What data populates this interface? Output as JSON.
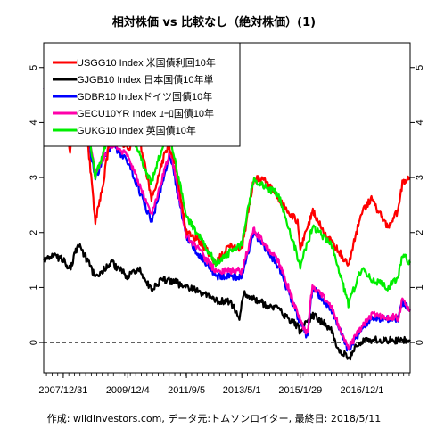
{
  "chart_data": {
    "type": "line",
    "title": "相対株価 vs 比較なし（絶対株価）(1)",
    "caption": "作成: wildinvestors.com, データ元:トムソンロイター, 最終日: 2018/5/11",
    "xlabel": "",
    "ylabel": "",
    "x_tick_labels": [
      "2007/12/31",
      "2009/12/4",
      "2011/9/5",
      "2013/5/1",
      "2015/1/29",
      "2016/12/1"
    ],
    "x_tick_dates": [
      "2007-12-31",
      "2009-12-04",
      "2011-09-05",
      "2013-05-01",
      "2015-01-29",
      "2016-12-01"
    ],
    "x_range": [
      "2007-06-01",
      "2018-05-11"
    ],
    "y_ticks": [
      0,
      1,
      2,
      3,
      4,
      5
    ],
    "ylim": [
      -0.55,
      5.45
    ],
    "y_tick_labels_left": [
      "0",
      "1",
      "2",
      "3",
      "4",
      "5"
    ],
    "y_tick_labels_right": [
      "0",
      "1",
      "2",
      "3",
      "4",
      "5"
    ],
    "zero_line": {
      "value": 0,
      "style": "dashed"
    },
    "legend_position": "top-left",
    "series": [
      {
        "name": "USGG10 Index 米国債利回10年",
        "color": "#ff0000",
        "points": [
          [
            "2007-06-01",
            5.0
          ],
          [
            "2007-09-01",
            4.5
          ],
          [
            "2007-12-31",
            4.0
          ],
          [
            "2008-03-15",
            3.5
          ],
          [
            "2008-06-15",
            4.2
          ],
          [
            "2008-09-15",
            3.8
          ],
          [
            "2008-12-15",
            2.2
          ],
          [
            "2009-03-01",
            2.8
          ],
          [
            "2009-06-10",
            3.9
          ],
          [
            "2009-12-04",
            3.5
          ],
          [
            "2010-04-01",
            3.8
          ],
          [
            "2010-08-20",
            2.6
          ],
          [
            "2010-12-01",
            3.2
          ],
          [
            "2011-02-15",
            3.6
          ],
          [
            "2011-05-01",
            3.3
          ],
          [
            "2011-09-05",
            2.0
          ],
          [
            "2012-01-01",
            1.9
          ],
          [
            "2012-07-20",
            1.45
          ],
          [
            "2012-12-15",
            1.75
          ],
          [
            "2013-05-01",
            1.7
          ],
          [
            "2013-09-05",
            2.95
          ],
          [
            "2013-12-31",
            3.0
          ],
          [
            "2014-06-01",
            2.6
          ],
          [
            "2014-12-31",
            2.2
          ],
          [
            "2015-01-29",
            1.7
          ],
          [
            "2015-06-15",
            2.4
          ],
          [
            "2015-10-15",
            2.0
          ],
          [
            "2016-02-15",
            1.75
          ],
          [
            "2016-07-06",
            1.4
          ],
          [
            "2016-12-01",
            2.4
          ],
          [
            "2017-03-15",
            2.6
          ],
          [
            "2017-09-08",
            2.1
          ],
          [
            "2017-12-31",
            2.4
          ],
          [
            "2018-02-15",
            2.9
          ],
          [
            "2018-05-11",
            3.0
          ]
        ]
      },
      {
        "name": "GJGB10 Index 日本国債10年単",
        "color": "#000000",
        "points": [
          [
            "2007-06-01",
            1.5
          ],
          [
            "2007-09-01",
            1.6
          ],
          [
            "2007-12-31",
            1.5
          ],
          [
            "2008-03-15",
            1.35
          ],
          [
            "2008-06-15",
            1.8
          ],
          [
            "2008-09-15",
            1.5
          ],
          [
            "2008-12-15",
            1.2
          ],
          [
            "2009-06-10",
            1.45
          ],
          [
            "2009-12-04",
            1.2
          ],
          [
            "2010-04-01",
            1.35
          ],
          [
            "2010-08-20",
            0.95
          ],
          [
            "2010-12-01",
            1.15
          ],
          [
            "2011-05-01",
            1.1
          ],
          [
            "2011-09-05",
            1.0
          ],
          [
            "2012-01-01",
            0.95
          ],
          [
            "2012-07-20",
            0.75
          ],
          [
            "2012-12-15",
            0.75
          ],
          [
            "2013-04-05",
            0.45
          ],
          [
            "2013-05-23",
            0.9
          ],
          [
            "2013-12-31",
            0.7
          ],
          [
            "2014-06-01",
            0.6
          ],
          [
            "2014-12-31",
            0.3
          ],
          [
            "2015-01-20",
            0.2
          ],
          [
            "2015-06-15",
            0.5
          ],
          [
            "2015-12-31",
            0.25
          ],
          [
            "2016-03-15",
            -0.15
          ],
          [
            "2016-07-27",
            -0.28
          ],
          [
            "2016-10-01",
            -0.05
          ],
          [
            "2016-12-01",
            0.02
          ],
          [
            "2017-06-01",
            0.05
          ],
          [
            "2017-12-31",
            0.04
          ],
          [
            "2018-05-11",
            0.05
          ]
        ]
      },
      {
        "name": "GDBR10 Indexドイツ国債10年",
        "color": "#0000ff",
        "points": [
          [
            "2007-06-01",
            4.6
          ],
          [
            "2007-12-31",
            4.3
          ],
          [
            "2008-06-15",
            4.6
          ],
          [
            "2008-12-15",
            3.0
          ],
          [
            "2009-06-10",
            3.6
          ],
          [
            "2009-12-04",
            3.3
          ],
          [
            "2010-08-20",
            2.2
          ],
          [
            "2011-03-15",
            3.4
          ],
          [
            "2011-09-05",
            1.9
          ],
          [
            "2012-07-20",
            1.2
          ],
          [
            "2013-05-01",
            1.2
          ],
          [
            "2013-09-05",
            2.0
          ],
          [
            "2014-06-01",
            1.4
          ],
          [
            "2015-01-29",
            0.35
          ],
          [
            "2015-04-17",
            0.1
          ],
          [
            "2015-06-10",
            1.0
          ],
          [
            "2015-12-31",
            0.6
          ],
          [
            "2016-07-06",
            -0.15
          ],
          [
            "2016-12-01",
            0.25
          ],
          [
            "2017-03-15",
            0.45
          ],
          [
            "2017-12-31",
            0.42
          ],
          [
            "2018-02-15",
            0.75
          ],
          [
            "2018-05-11",
            0.6
          ]
        ]
      },
      {
        "name": "GECU10YR Index ﾕｰﾛ国債10年",
        "color": "#ff00aa",
        "points": [
          [
            "2007-06-01",
            4.6
          ],
          [
            "2007-12-31",
            4.3
          ],
          [
            "2008-06-15",
            4.7
          ],
          [
            "2008-12-15",
            3.1
          ],
          [
            "2009-06-10",
            3.6
          ],
          [
            "2009-12-04",
            3.4
          ],
          [
            "2010-08-20",
            2.3
          ],
          [
            "2011-03-15",
            3.5
          ],
          [
            "2011-09-05",
            1.95
          ],
          [
            "2012-07-20",
            1.3
          ],
          [
            "2013-05-01",
            1.3
          ],
          [
            "2013-09-05",
            2.05
          ],
          [
            "2014-06-01",
            1.5
          ],
          [
            "2015-01-29",
            0.4
          ],
          [
            "2015-04-17",
            0.15
          ],
          [
            "2015-06-10",
            1.05
          ],
          [
            "2015-12-31",
            0.65
          ],
          [
            "2016-07-06",
            -0.1
          ],
          [
            "2016-12-01",
            0.3
          ],
          [
            "2017-03-15",
            0.5
          ],
          [
            "2017-12-31",
            0.45
          ],
          [
            "2018-02-15",
            0.78
          ],
          [
            "2018-05-11",
            0.6
          ]
        ]
      },
      {
        "name": "GUKG10 Index 英国債10年",
        "color": "#00ee00",
        "points": [
          [
            "2007-06-01",
            5.3
          ],
          [
            "2007-12-31",
            4.5
          ],
          [
            "2008-06-15",
            5.1
          ],
          [
            "2008-12-15",
            3.0
          ],
          [
            "2009-06-10",
            3.9
          ],
          [
            "2009-12-04",
            3.9
          ],
          [
            "2010-08-20",
            2.9
          ],
          [
            "2011-02-15",
            3.9
          ],
          [
            "2011-09-05",
            2.3
          ],
          [
            "2012-07-20",
            1.45
          ],
          [
            "2013-05-01",
            1.8
          ],
          [
            "2013-09-05",
            2.95
          ],
          [
            "2014-06-01",
            2.7
          ],
          [
            "2015-01-29",
            1.4
          ],
          [
            "2015-06-15",
            2.1
          ],
          [
            "2015-12-31",
            1.8
          ],
          [
            "2016-07-06",
            0.7
          ],
          [
            "2016-12-01",
            1.35
          ],
          [
            "2017-03-15",
            1.15
          ],
          [
            "2017-09-08",
            1.0
          ],
          [
            "2017-12-31",
            1.2
          ],
          [
            "2018-02-15",
            1.6
          ],
          [
            "2018-05-11",
            1.45
          ]
        ]
      }
    ]
  }
}
